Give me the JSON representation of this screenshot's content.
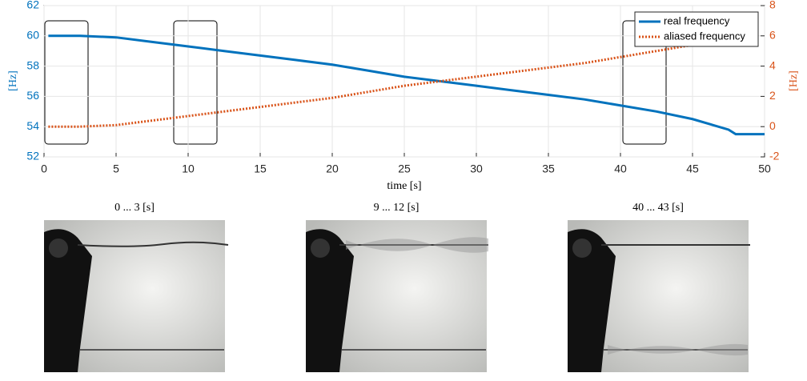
{
  "chart_data": {
    "type": "line",
    "xlabel": "time [s]",
    "ylabel": "[Hz]",
    "y2label": "[Hz]",
    "x": [
      0.3,
      2.5,
      5,
      7.5,
      10,
      12.5,
      15,
      17.5,
      20,
      22.5,
      25,
      27.5,
      30,
      32.5,
      35,
      37.5,
      40,
      42.5,
      45,
      47.5,
      48,
      50
    ],
    "series": [
      {
        "name": "real frequency",
        "color": "#0072bd",
        "style": "solid",
        "values": [
          60,
          60,
          59.9,
          59.6,
          59.3,
          59.0,
          58.7,
          58.4,
          58.1,
          57.7,
          57.3,
          57.0,
          56.7,
          56.4,
          56.1,
          55.8,
          55.4,
          55.0,
          54.5,
          53.8,
          53.5,
          53.5
        ]
      },
      {
        "name": "aliased frequency",
        "color": "#d95319",
        "style": "dotted",
        "axis": "y2",
        "values": [
          0,
          0,
          0.1,
          0.4,
          0.7,
          1.0,
          1.3,
          1.6,
          1.9,
          2.3,
          2.7,
          3.0,
          3.3,
          3.6,
          3.9,
          4.2,
          4.6,
          5.0,
          5.4,
          null,
          null,
          null
        ]
      }
    ],
    "xlim": [
      0,
      50
    ],
    "xticks": [
      0,
      5,
      10,
      15,
      20,
      25,
      30,
      35,
      40,
      45,
      50
    ],
    "ylim": [
      52,
      62
    ],
    "yticks": [
      52,
      54,
      56,
      58,
      60,
      62
    ],
    "y2lim": [
      -2,
      8
    ],
    "y2ticks": [
      -2,
      0,
      2,
      4,
      6,
      8
    ],
    "grid": true,
    "legend": "top-right"
  },
  "panels": [
    {
      "title": "0 ... 3 [s]"
    },
    {
      "title": "9 ... 12 [s]"
    },
    {
      "title": "40 ... 43 [s]"
    }
  ]
}
